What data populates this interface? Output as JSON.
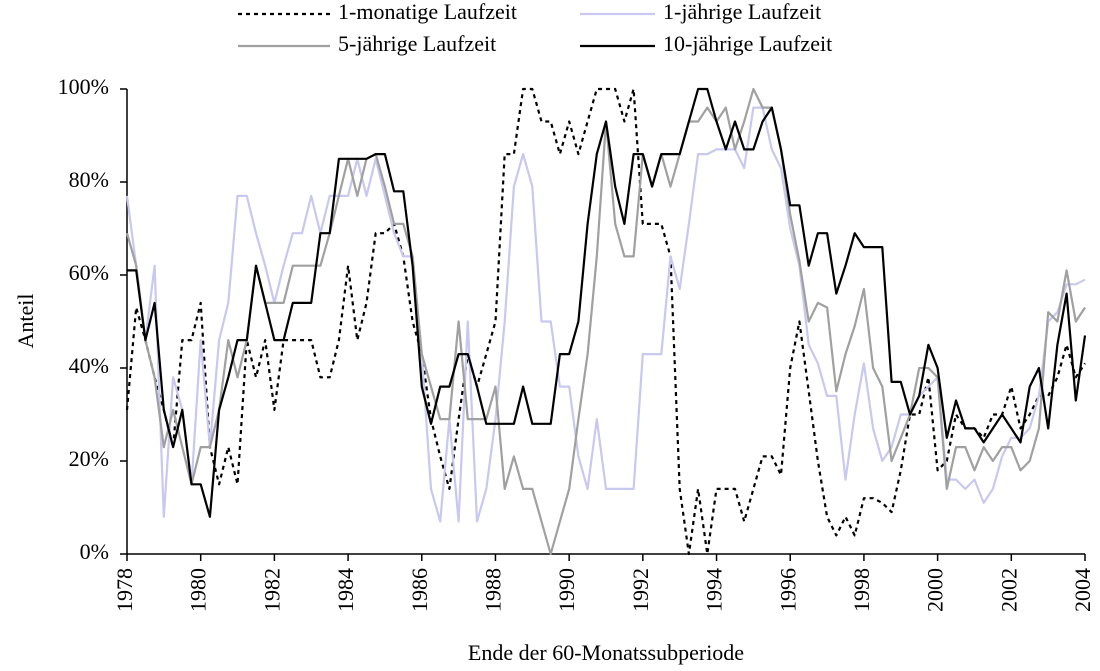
{
  "chart_data": {
    "type": "line",
    "ylabel": "Anteil",
    "xlabel": "Ende der 60-Monatssubperiode",
    "x": [
      1978,
      1978.25,
      1978.5,
      1978.75,
      1979,
      1979.25,
      1979.5,
      1979.75,
      1980,
      1980.25,
      1980.5,
      1980.75,
      1981,
      1981.25,
      1981.5,
      1981.75,
      1982,
      1982.25,
      1982.5,
      1982.75,
      1983,
      1983.25,
      1983.5,
      1983.75,
      1984,
      1984.25,
      1984.5,
      1984.75,
      1985,
      1985.25,
      1985.5,
      1985.75,
      1986,
      1986.25,
      1986.5,
      1986.75,
      1987,
      1987.25,
      1987.5,
      1987.75,
      1988,
      1988.25,
      1988.5,
      1988.75,
      1989,
      1989.25,
      1989.5,
      1989.75,
      1990,
      1990.25,
      1990.5,
      1990.75,
      1991,
      1991.25,
      1991.5,
      1991.75,
      1992,
      1992.25,
      1992.5,
      1992.75,
      1993,
      1993.25,
      1993.5,
      1993.75,
      1994,
      1994.25,
      1994.5,
      1994.75,
      1995,
      1995.25,
      1995.5,
      1995.75,
      1996,
      1996.25,
      1996.5,
      1996.75,
      1997,
      1997.25,
      1997.5,
      1997.75,
      1998,
      1998.25,
      1998.5,
      1998.75,
      1999,
      1999.25,
      1999.5,
      1999.75,
      2000,
      2000.25,
      2000.5,
      2000.75,
      2001,
      2001.25,
      2001.5,
      2001.75,
      2002,
      2002.25,
      2002.5,
      2002.75,
      2003,
      2003.25,
      2003.5,
      2003.75,
      2004
    ],
    "series": [
      {
        "name": "1-monatige Laufzeit",
        "color": "#000000",
        "line_style": "dashed",
        "values": [
          31,
          53,
          46,
          38,
          31,
          23,
          46,
          46,
          54,
          23,
          15,
          23,
          15,
          46,
          38,
          46,
          31,
          46,
          46,
          46,
          46,
          38,
          38,
          46,
          62,
          46,
          54,
          69,
          69,
          71,
          64,
          50,
          43,
          29,
          21,
          14,
          29,
          43,
          36,
          43,
          50,
          86,
          86,
          100,
          100,
          93,
          93,
          86,
          93,
          86,
          93,
          100,
          100,
          100,
          93,
          100,
          71,
          71,
          71,
          64,
          14,
          0,
          14,
          0,
          14,
          14,
          14,
          7,
          14,
          21,
          21,
          17,
          40,
          50,
          35,
          20,
          8,
          4,
          8,
          4,
          12,
          12,
          11,
          9,
          18,
          30,
          30,
          38,
          18,
          20,
          30,
          27,
          27,
          25,
          30,
          30,
          36,
          27,
          30,
          34,
          34,
          38,
          45,
          38,
          41
        ]
      },
      {
        "name": "1-jährige Laufzeit",
        "color": "#c8c8f0",
        "line_style": "solid",
        "values": [
          77,
          62,
          46,
          62,
          8,
          38,
          31,
          15,
          46,
          23,
          46,
          54,
          77,
          77,
          69,
          62,
          54,
          62,
          69,
          69,
          77,
          69,
          77,
          77,
          77,
          85,
          77,
          85,
          77,
          69,
          64,
          64,
          43,
          14,
          7,
          29,
          7,
          50,
          7,
          14,
          29,
          50,
          79,
          86,
          79,
          50,
          50,
          36,
          36,
          21,
          14,
          29,
          14,
          14,
          14,
          14,
          43,
          43,
          43,
          64,
          57,
          71,
          86,
          86,
          87,
          87,
          87,
          83,
          96,
          96,
          87,
          83,
          70,
          62,
          45,
          41,
          34,
          34,
          16,
          30,
          41,
          27,
          20,
          23,
          30,
          30,
          34,
          36,
          38,
          16,
          16,
          14,
          16,
          11,
          14,
          21,
          25,
          25,
          27,
          34,
          50,
          52,
          58,
          58,
          59
        ]
      },
      {
        "name": "5-jährige Laufzeit",
        "color": "#a0a0a0",
        "line_style": "solid",
        "values": [
          69,
          62,
          46,
          38,
          23,
          31,
          23,
          15,
          23,
          23,
          31,
          46,
          38,
          46,
          62,
          54,
          54,
          54,
          62,
          62,
          62,
          62,
          69,
          77,
          85,
          77,
          85,
          86,
          79,
          71,
          71,
          64,
          43,
          36,
          29,
          29,
          50,
          29,
          29,
          29,
          36,
          14,
          21,
          14,
          14,
          7,
          0,
          7,
          14,
          29,
          43,
          64,
          93,
          71,
          64,
          64,
          86,
          79,
          86,
          79,
          86,
          93,
          93,
          96,
          93,
          96,
          87,
          93,
          100,
          96,
          96,
          87,
          73,
          63,
          50,
          54,
          53,
          35,
          43,
          49,
          57,
          40,
          36,
          20,
          25,
          30,
          40,
          40,
          38,
          14,
          23,
          23,
          18,
          23,
          20,
          23,
          23,
          18,
          20,
          27,
          52,
          50,
          61,
          50,
          53
        ]
      },
      {
        "name": "10-jährige Laufzeit",
        "color": "#000000",
        "line_style": "solid",
        "values": [
          61,
          61,
          46,
          54,
          31,
          23,
          31,
          15,
          15,
          8,
          31,
          38,
          46,
          46,
          62,
          54,
          46,
          46,
          54,
          54,
          54,
          69,
          69,
          85,
          85,
          85,
          85,
          86,
          86,
          78,
          78,
          62,
          36,
          28,
          36,
          36,
          43,
          43,
          36,
          28,
          28,
          28,
          28,
          36,
          28,
          28,
          28,
          43,
          43,
          50,
          71,
          86,
          93,
          79,
          71,
          86,
          86,
          79,
          86,
          86,
          86,
          93,
          100,
          100,
          93,
          87,
          93,
          87,
          87,
          93,
          96,
          87,
          75,
          75,
          62,
          69,
          69,
          56,
          62,
          69,
          66,
          66,
          66,
          37,
          37,
          30,
          34,
          45,
          40,
          25,
          33,
          27,
          27,
          24,
          27,
          30,
          27,
          24,
          36,
          40,
          27,
          45,
          56,
          33,
          47
        ]
      }
    ],
    "xlim": [
      1978,
      2004
    ],
    "ylim": [
      0,
      100
    ],
    "xticks": [
      1978,
      1980,
      1982,
      1984,
      1986,
      1988,
      1990,
      1992,
      1994,
      1996,
      1998,
      2000,
      2002,
      2004
    ],
    "yticks": [
      {
        "value": 0,
        "label": "0%"
      },
      {
        "value": 20,
        "label": "20%"
      },
      {
        "value": 40,
        "label": "40%"
      },
      {
        "value": 60,
        "label": "60%"
      },
      {
        "value": 80,
        "label": "80%"
      },
      {
        "value": 100,
        "label": "100%"
      }
    ]
  }
}
